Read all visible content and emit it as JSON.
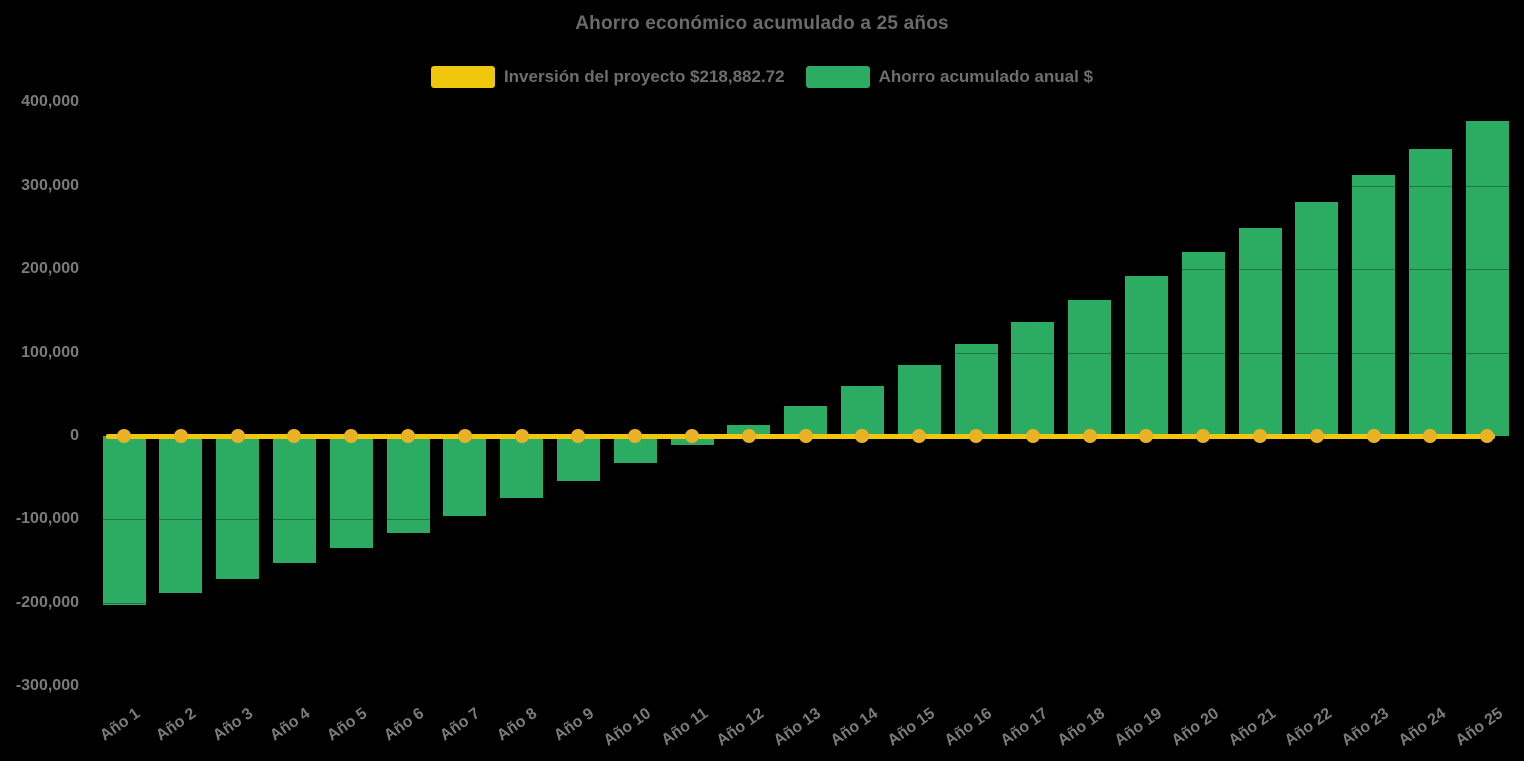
{
  "chart_data": {
    "type": "bar",
    "title": "Ahorro económico acumulado a 25 años",
    "background_color": "#000000",
    "title_color": "#6A6A6A",
    "tick_label_color": "#7B7B7B",
    "legend_position": "top",
    "grid": false,
    "ylim": [
      -300000,
      400000
    ],
    "ytick_values": [
      400000,
      300000,
      200000,
      100000,
      0,
      -100000,
      -200000,
      -300000
    ],
    "ytick_labels": [
      "400,000",
      "300,000",
      "200,000",
      "100,000",
      "0",
      "-100,000",
      "-200,000",
      "-300,000"
    ],
    "categories": [
      "Año 1",
      "Año 2",
      "Año 3",
      "Año 4",
      "Año 5",
      "Año 6",
      "Año 7",
      "Año 8",
      "Año 9",
      "Año 10",
      "Año 11",
      "Año 12",
      "Año 13",
      "Año 14",
      "Año 15",
      "Año 16",
      "Año 17",
      "Año 18",
      "Año 19",
      "Año 20",
      "Año 21",
      "Año 22",
      "Año 23",
      "Año 24",
      "Año 25"
    ],
    "series": [
      {
        "name": "Inversión del proyecto $218,882.72",
        "type": "line",
        "color": "#F1C70E",
        "marker_color": "#E9B124",
        "values": [
          0,
          0,
          0,
          0,
          0,
          0,
          0,
          0,
          0,
          0,
          0,
          0,
          0,
          0,
          0,
          0,
          0,
          0,
          0,
          0,
          0,
          0,
          0,
          0,
          0
        ]
      },
      {
        "name": "Ahorro acumulado anual $",
        "type": "bar",
        "color": "#2BAC62",
        "values": [
          -203000,
          -188500,
          -171000,
          -153000,
          -134000,
          -116000,
          -95500,
          -74000,
          -53500,
          -32500,
          -10500,
          12500,
          36000,
          59500,
          85000,
          110500,
          137000,
          163500,
          191500,
          221000,
          249500,
          281000,
          313000,
          344500,
          378000
        ]
      }
    ]
  }
}
